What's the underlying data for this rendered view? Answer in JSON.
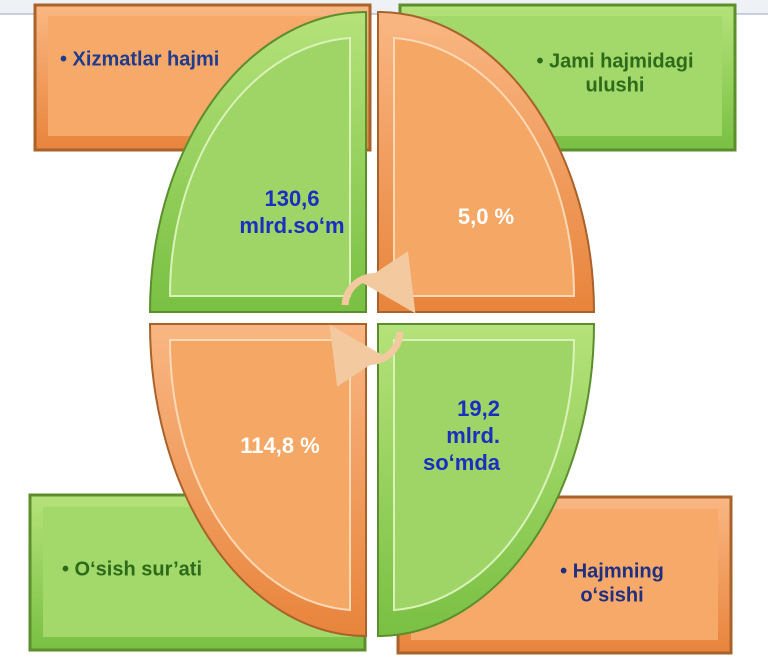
{
  "boxes": [
    {
      "lines": [
        "• Xizmatlar hajmi"
      ]
    },
    {
      "lines": [
        "• Jami hajmidagi",
        "ulushi"
      ]
    },
    {
      "lines": [
        "• O‘sish sur’ati"
      ]
    },
    {
      "lines": [
        "• Hajmning",
        "o‘sishi"
      ]
    }
  ],
  "quadrants": [
    {
      "lines": [
        "130,6",
        "mlrd.so‘m"
      ]
    },
    {
      "lines": [
        "5,0 %"
      ]
    },
    {
      "lines": [
        "114,8 %"
      ]
    },
    {
      "lines": [
        "19,2",
        "mlrd.",
        "so‘mda"
      ]
    }
  ]
}
